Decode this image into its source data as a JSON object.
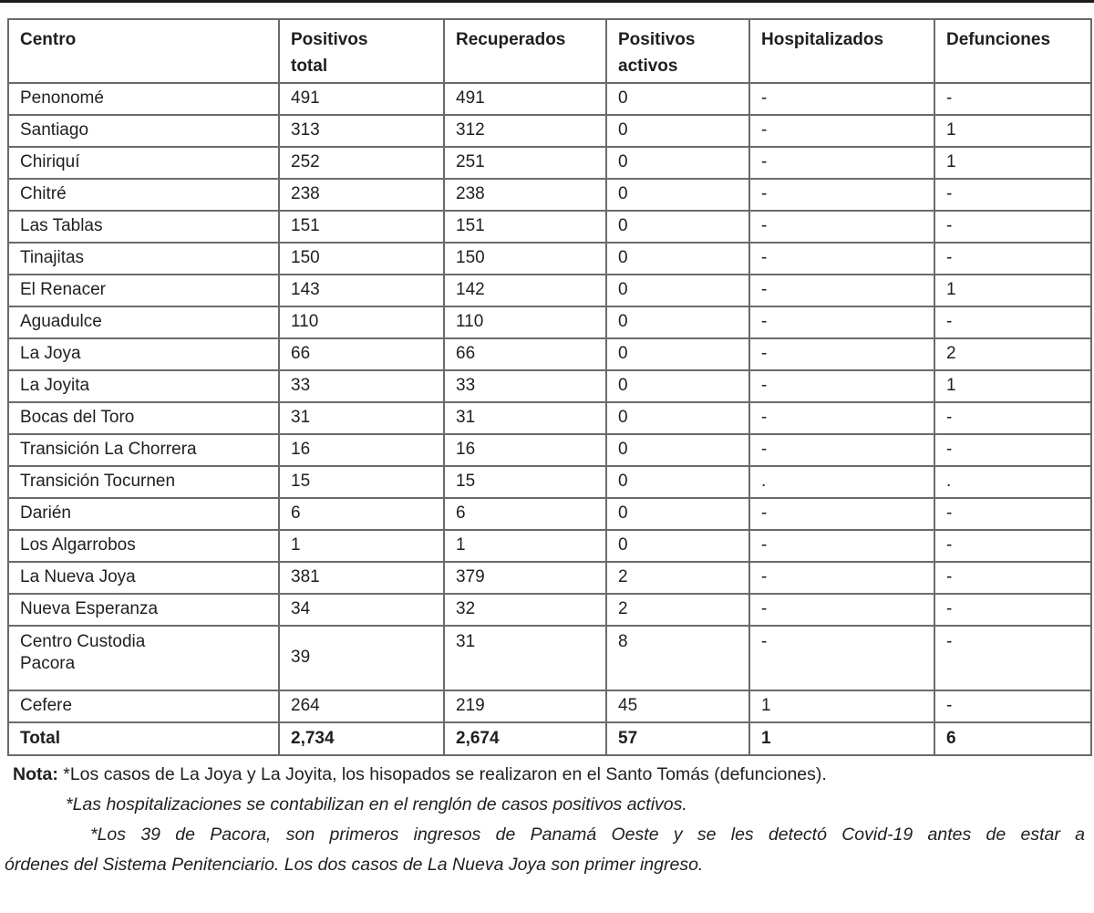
{
  "page": {
    "background": "#ffffff",
    "top_rule_color": "#1c1c1c",
    "text_color": "#1f1f1f",
    "border_color": "#6a6a6a"
  },
  "table": {
    "headers": [
      "Centro",
      "Positivos\ntotal",
      "Recuperados",
      "Positivos\nactivos",
      "Hospitalizados",
      "Defunciones"
    ],
    "rows": [
      [
        "Penonomé",
        "491",
        "491",
        "0",
        "-",
        "-"
      ],
      [
        "Santiago",
        "313",
        "312",
        "0",
        "-",
        "1"
      ],
      [
        "Chiriquí",
        "252",
        "251",
        "0",
        "-",
        "1"
      ],
      [
        "Chitré",
        "238",
        "238",
        "0",
        "-",
        "-"
      ],
      [
        "Las Tablas",
        "151",
        "151",
        "0",
        "-",
        "-"
      ],
      [
        "Tinajitas",
        "150",
        "150",
        "0",
        "-",
        "-"
      ],
      [
        "El Renacer",
        "143",
        "142",
        "0",
        "-",
        "1"
      ],
      [
        "Aguadulce",
        "110",
        "110",
        "0",
        "-",
        "-"
      ],
      [
        "La Joya",
        "66",
        "66",
        "0",
        "-",
        "2"
      ],
      [
        "La Joyita",
        "33",
        "33",
        "0",
        "-",
        "1"
      ],
      [
        "Bocas del Toro",
        "31",
        "31",
        "0",
        "-",
        "-"
      ],
      [
        "Transición La Chorrera",
        "16",
        "16",
        "0",
        "-",
        "-"
      ],
      [
        "Transición Tocurnen",
        "15",
        "15",
        "0",
        ".",
        "."
      ],
      [
        "Darién",
        "6",
        "6",
        "0",
        "-",
        "-"
      ],
      [
        "Los Algarrobos",
        "1",
        "1",
        "0",
        "-",
        "-"
      ],
      [
        "La Nueva Joya",
        "381",
        "379",
        "2",
        "-",
        "-"
      ],
      [
        "Nueva Esperanza",
        "34",
        "32",
        "2",
        "-",
        "-"
      ],
      [
        "Centro Custodia\nPacora",
        "39",
        "31",
        "8",
        "-",
        "-"
      ],
      [
        "Cefere",
        "264",
        "219",
        "45",
        "1",
        "-"
      ]
    ],
    "total": [
      "Total",
      "2,734",
      "2,674",
      "57",
      "1",
      "6"
    ]
  },
  "notes": {
    "label": "Nota:",
    "line1": " *Los casos de La Joya y La Joyita, los hisopados se realizaron en el Santo Tomás (defunciones).",
    "line2": "*Las hospitalizaciones se contabilizan en el renglón de casos positivos activos.",
    "line3": "*Los 39 de Pacora, son primeros ingresos de Panamá Oeste y se les detectó Covid-19 antes de estar a",
    "line4": "órdenes del Sistema Penitenciario. Los dos casos de La Nueva Joya son primer ingreso."
  }
}
